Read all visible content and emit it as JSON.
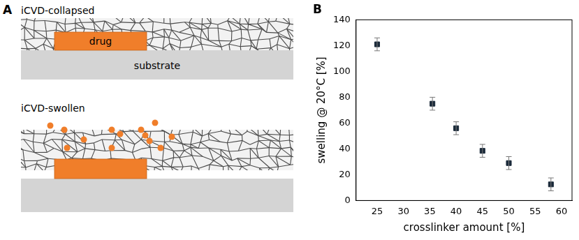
{
  "diagram": {
    "label": "A",
    "top_caption": "iCVD-collapsed",
    "bottom_caption": "iCVD-swollen",
    "drug": "drug",
    "substrate": "substrate"
  },
  "chart_data": {
    "type": "scatter",
    "title": "B",
    "x_label": "crosslinker amount [%]",
    "y_label": "swelling @ 20°C [%]",
    "x": [
      25,
      35.5,
      40,
      45,
      50,
      58
    ],
    "values": [
      121,
      75,
      56,
      38.5,
      29,
      12.5
    ],
    "errors": [
      5,
      5,
      5,
      5,
      5,
      5
    ],
    "color": "#1b2a3a",
    "marker": "square",
    "xlim": [
      21,
      62
    ],
    "xticks": [
      25,
      30,
      35,
      40,
      45,
      50,
      55,
      60
    ],
    "ylim": [
      0,
      140
    ],
    "yticks": [
      0,
      20,
      40,
      60,
      80,
      100,
      120,
      140
    ],
    "grid": false
  }
}
